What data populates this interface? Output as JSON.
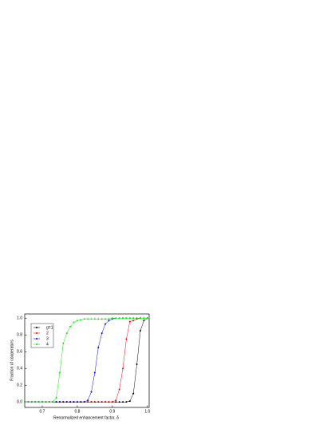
{
  "chart_data": {
    "type": "line",
    "xlabel": "Renormalized enhancement factor, δ",
    "ylabel": "Fraction of cooperators",
    "x": [
      0.65,
      0.66,
      0.67,
      0.68,
      0.69,
      0.7,
      0.71,
      0.72,
      0.73,
      0.74,
      0.75,
      0.76,
      0.77,
      0.78,
      0.79,
      0.8,
      0.81,
      0.82,
      0.83,
      0.84,
      0.85,
      0.86,
      0.87,
      0.88,
      0.89,
      0.9,
      0.91,
      0.92,
      0.93,
      0.94,
      0.95,
      0.96,
      0.97,
      0.98,
      0.99,
      1.0
    ],
    "series": [
      {
        "name": "g=1",
        "color": "#000000",
        "values": [
          0,
          0,
          0,
          0,
          0,
          0,
          0,
          0,
          0,
          0,
          0,
          0,
          0,
          0,
          0,
          0,
          0,
          0,
          0,
          0,
          0,
          0,
          0,
          0,
          0,
          0,
          0,
          0,
          0,
          0,
          0.01,
          0.1,
          0.45,
          0.85,
          0.97,
          1
        ]
      },
      {
        "name": "2",
        "color": "#ff0000",
        "values": [
          0,
          0,
          0,
          0,
          0,
          0,
          0,
          0,
          0,
          0,
          0,
          0,
          0,
          0,
          0,
          0,
          0,
          0,
          0,
          0,
          0,
          0,
          0,
          0,
          0,
          0,
          0.02,
          0.15,
          0.4,
          0.75,
          0.96,
          0.97,
          0.99,
          1,
          1,
          1
        ]
      },
      {
        "name": "3",
        "color": "#0000ff",
        "values": [
          0,
          0,
          0,
          0,
          0,
          0,
          0,
          0,
          0,
          0,
          0,
          0,
          0,
          0,
          0,
          0,
          0,
          0,
          0.02,
          0.12,
          0.35,
          0.65,
          0.82,
          0.93,
          0.97,
          0.99,
          1,
          1,
          1,
          1,
          1,
          1,
          1,
          1,
          1,
          1
        ]
      },
      {
        "name": "4",
        "color": "#00ee00",
        "values": [
          0,
          0,
          0,
          0,
          0,
          0,
          0,
          0,
          0,
          0.05,
          0.35,
          0.7,
          0.82,
          0.9,
          0.95,
          0.97,
          0.98,
          0.99,
          0.99,
          0.99,
          0.99,
          0.99,
          0.99,
          0.99,
          0.99,
          1,
          1,
          1,
          1,
          1,
          1,
          1,
          1,
          1,
          1,
          1
        ]
      }
    ],
    "xlim": [
      0.65,
      1.005
    ],
    "ylim": [
      -0.065,
      1.05
    ],
    "xticks": [
      0.7,
      0.8,
      0.9,
      {
        "value": 1,
        "label": "1.0"
      }
    ],
    "yticks": [
      {
        "value": 0,
        "label": "0.0"
      },
      0.2,
      0.4,
      0.6,
      0.8,
      {
        "value": 1,
        "label": "1.0"
      }
    ],
    "legend": "upper left"
  }
}
